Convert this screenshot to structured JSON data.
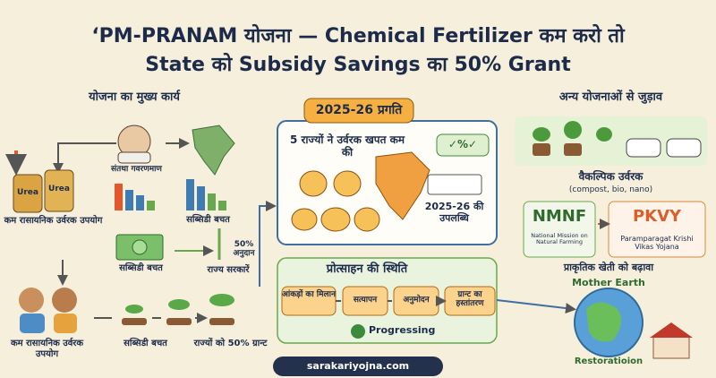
{
  "header": {
    "title_lines": [
      "‘PM-PRANAM योजना — Chemical Fertilizer कम करो तो",
      "State को Subsidy Savings का 50% Grant"
    ]
  },
  "left": {
    "heading": "योजना का मुख्य कार्य",
    "gov_label": "संतथा गवरणमाण",
    "bag_labels": [
      "Urea",
      "Urea"
    ],
    "fertilizer_label": "कम रासायनिक उर्वरक उपयोग",
    "chart_label": "सब्सिडी बचत",
    "money_label": "सब्सिडी बचत",
    "grant_label": "50% अनुदान",
    "states_label": "राज्य सरकारें",
    "flow": [
      "कम रासायनिक उर्वरक उपयोग",
      "सब्सिडी बचत",
      "राज्यों को 50% ग्रान्ट"
    ]
  },
  "progress": {
    "heading": "2025-26 प्रगति",
    "states_text": "5 राज्यों ने उर्वरक खपत कम की",
    "badge": "✓%✓",
    "achievement": "2025-26 की उपलब्धि"
  },
  "incentive": {
    "heading": "प्रोत्साहन की स्थिति",
    "steps": [
      "आंकड़ों का मिलान",
      "सत्यापन",
      "अनुमोदन",
      "ग्रान्ट का हस्तांतरण"
    ],
    "status": "Progressing"
  },
  "links": {
    "heading": "अन्य योजनाओं से जुड़ाव",
    "alt_title": "वैकल्पिक उर्वरक",
    "alt_types": "(compost, bio, nano)",
    "nmnf": {
      "name": "NMNF",
      "full": "National Mission on Natural Farming"
    },
    "pkvy": {
      "name": "PKVY",
      "full": "Paramparagat Krishi Vikas Yojana"
    },
    "promotion": "प्राकृतिक खेती को बढ़ावा",
    "earth_top": "Mother Earth",
    "earth_bottom": "Restoratioion"
  },
  "footer": {
    "site": "sarakariyojna.com"
  }
}
